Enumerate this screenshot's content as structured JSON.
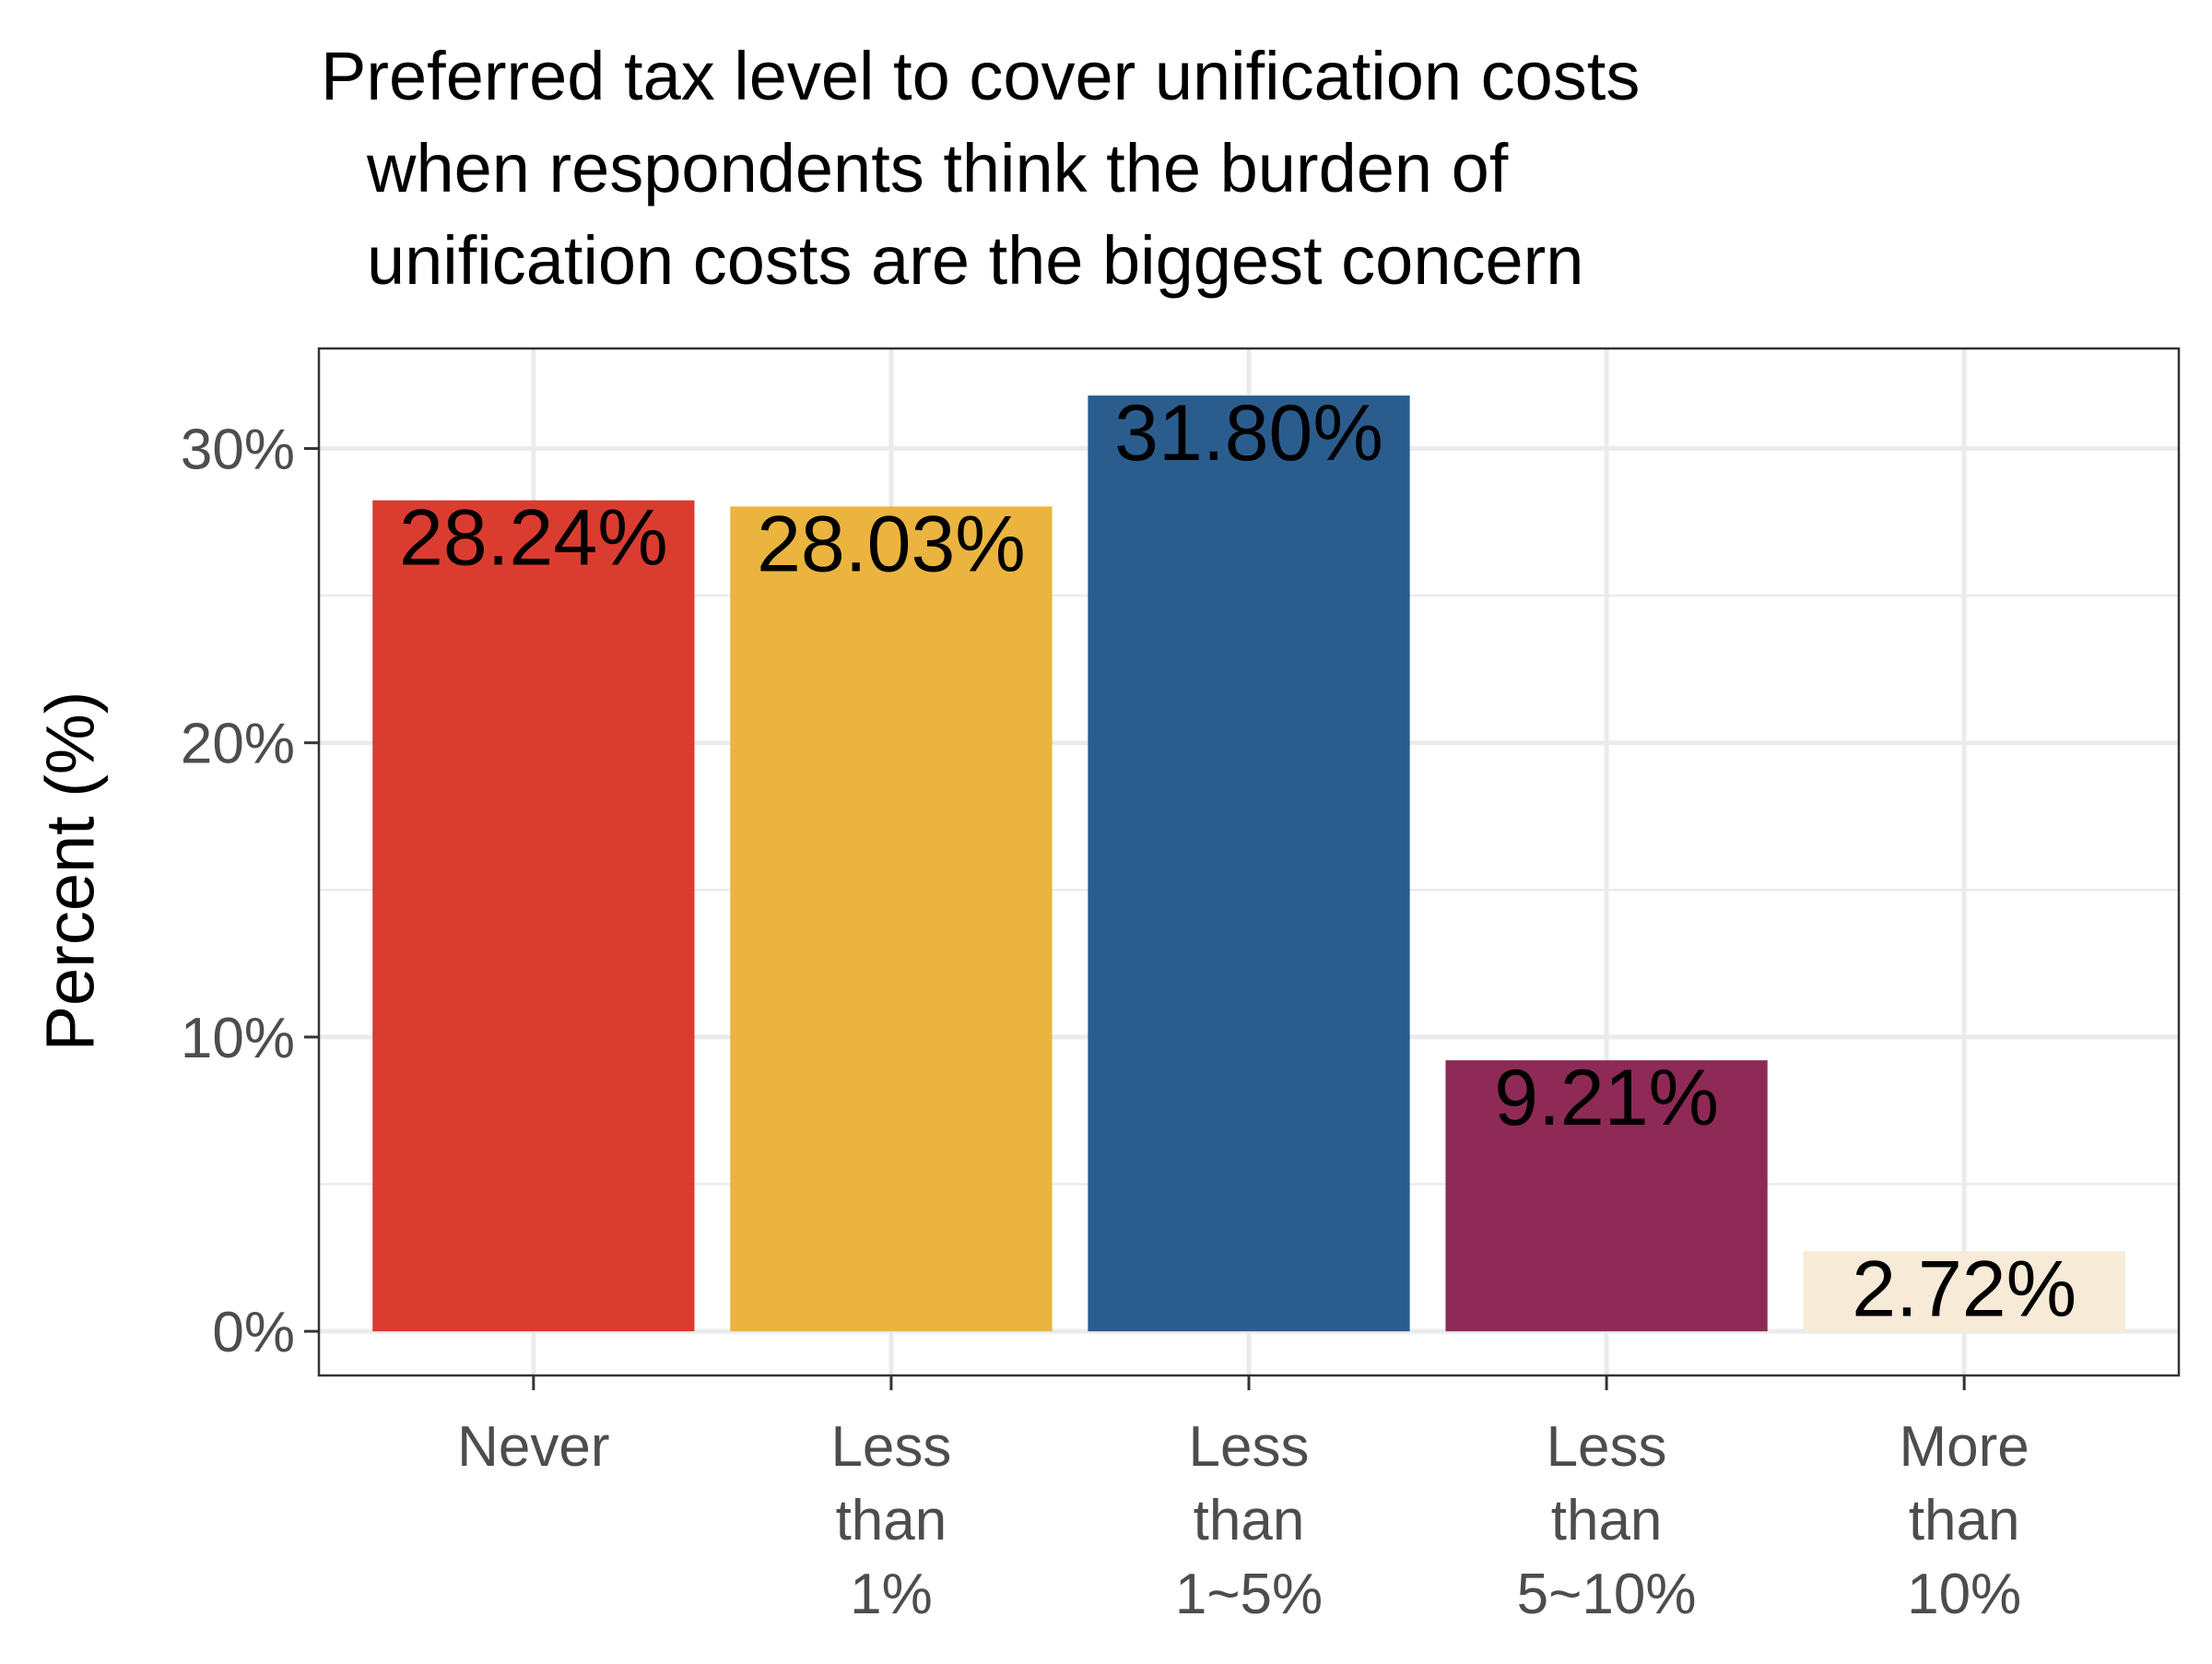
{
  "chart_data": {
    "type": "bar",
    "title_lines": [
      "Preferred tax level to cover unification costs",
      "when respondents think the burden of",
      "unification costs are the biggest concern"
    ],
    "xlabel": "",
    "ylabel": "Percent (%)",
    "categories": [
      [
        "Never"
      ],
      [
        "Less",
        "than",
        "1%"
      ],
      [
        "Less",
        "than",
        "1~5%"
      ],
      [
        "Less",
        "than",
        "5~10%"
      ],
      [
        "More",
        "than",
        "10%"
      ]
    ],
    "values": [
      28.24,
      28.03,
      31.8,
      9.21,
      2.72
    ],
    "value_labels": [
      "28.24%",
      "28.03%",
      "31.80%",
      "9.21%",
      "2.72%"
    ],
    "colors": [
      "#DB3C30",
      "#EAB43E",
      "#2A5D8E",
      "#8E2A55",
      "#F7EAD6"
    ],
    "ylim": [
      -1.5,
      33.4
    ],
    "yticks": [
      0,
      10,
      20,
      30
    ],
    "ytick_labels": [
      "0%",
      "10%",
      "20%",
      "30%"
    ],
    "grid": true,
    "legend": "none"
  }
}
